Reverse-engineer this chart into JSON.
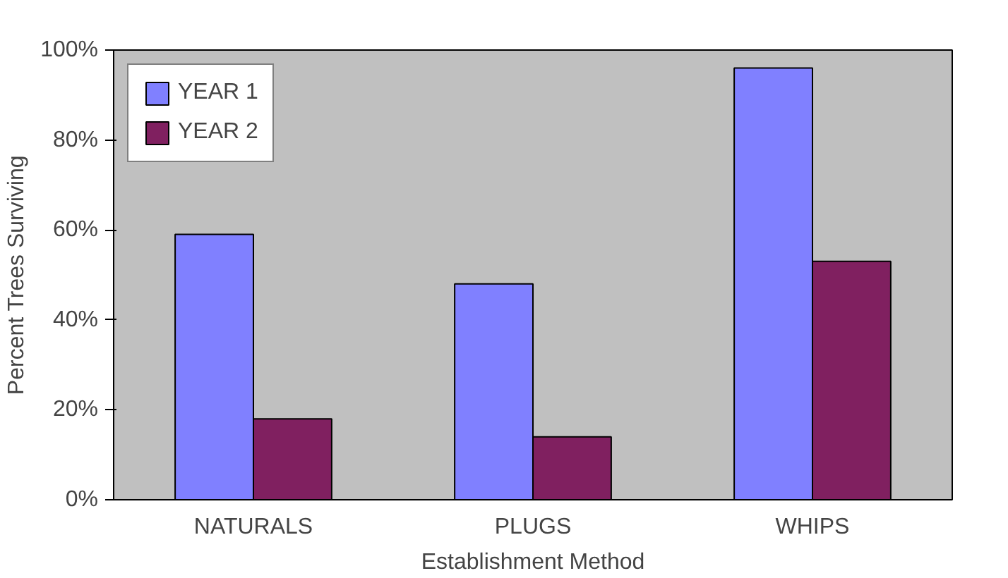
{
  "chart_data": {
    "type": "bar",
    "xlabel": "Establishment Method",
    "ylabel": "Percent Trees Surviving",
    "categories": [
      "NATURALS",
      "PLUGS",
      "WHIPS"
    ],
    "series": [
      {
        "name": "YEAR 1",
        "color": "#8080ff",
        "values": [
          59,
          48,
          96
        ]
      },
      {
        "name": "YEAR 2",
        "color": "#802060",
        "values": [
          18,
          14,
          53
        ]
      }
    ],
    "ylim": [
      0,
      100
    ],
    "yticks": [
      {
        "value": 0,
        "label": "0%"
      },
      {
        "value": 20,
        "label": "20%"
      },
      {
        "value": 40,
        "label": "40%"
      },
      {
        "value": 60,
        "label": "60%"
      },
      {
        "value": 80,
        "label": "80%"
      },
      {
        "value": 100,
        "label": "100%"
      }
    ],
    "grid": false,
    "legend": "top left"
  }
}
